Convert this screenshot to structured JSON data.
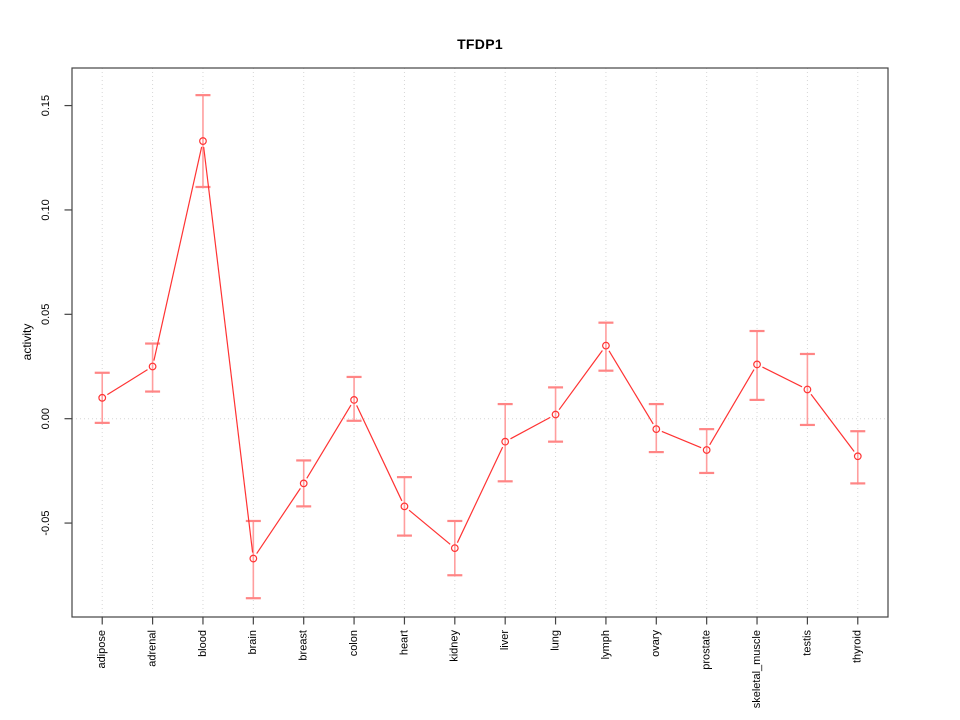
{
  "chart_data": {
    "type": "line",
    "title": "TFDP1",
    "xlabel": "",
    "ylabel": "activity",
    "legend": "none",
    "grid": {
      "vertical": "per-category",
      "horizontal_at": 0.0,
      "style": "dotted"
    },
    "categories": [
      "adipose",
      "adrenal",
      "blood",
      "brain",
      "breast",
      "colon",
      "heart",
      "kidney",
      "liver",
      "lung",
      "lymph",
      "ovary",
      "prostate",
      "skeletal_muscle",
      "testis",
      "thyroid"
    ],
    "series": [
      {
        "name": "activity",
        "values": [
          0.01,
          0.025,
          0.133,
          -0.067,
          -0.031,
          0.009,
          -0.042,
          -0.062,
          -0.011,
          0.002,
          0.035,
          -0.005,
          -0.015,
          0.026,
          0.014,
          -0.018
        ],
        "error_lower": [
          -0.002,
          0.013,
          0.111,
          -0.086,
          -0.042,
          -0.001,
          -0.056,
          -0.075,
          -0.03,
          -0.011,
          0.023,
          -0.016,
          -0.026,
          0.009,
          -0.003,
          -0.031
        ],
        "error_upper": [
          0.022,
          0.036,
          0.155,
          -0.049,
          -0.02,
          0.02,
          -0.028,
          -0.049,
          0.007,
          0.015,
          0.046,
          0.007,
          -0.005,
          0.042,
          0.031,
          -0.006
        ]
      }
    ],
    "yticks": [
      -0.05,
      0.0,
      0.05,
      0.1,
      0.15
    ],
    "ytick_labels": [
      "-0.05",
      "0.00",
      "0.05",
      "0.10",
      "0.15"
    ],
    "ylim": [
      -0.095,
      0.168
    ],
    "marker": "open-circle",
    "colors": {
      "line": "#ff3333",
      "marker": "#ff3333",
      "error_bar": "#ff9e9e",
      "error_cap": "#ff8585",
      "grid": "#d6d6d6",
      "box": "#444444",
      "text": "#000000",
      "background": "#ffffff"
    }
  }
}
